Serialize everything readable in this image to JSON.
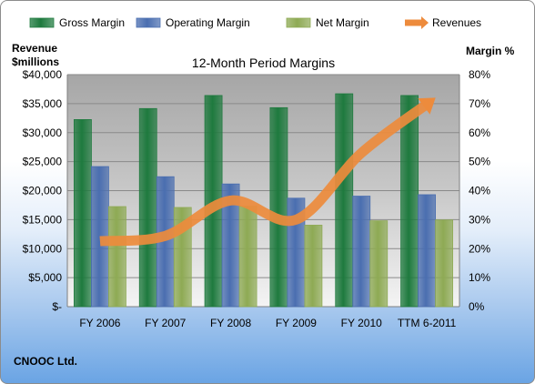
{
  "chart_data": {
    "type": "bar",
    "title": "12-Month Period Margins",
    "categories": [
      "FY 2006",
      "FY 2007",
      "FY 2008",
      "FY 2009",
      "FY 2010",
      "TTM 6-2011"
    ],
    "series": [
      {
        "name": "Gross Margin",
        "axis": "right",
        "color": "#1e7a3e",
        "values": [
          64.5,
          68.3,
          72.8,
          68.6,
          73.4,
          72.8
        ]
      },
      {
        "name": "Operating Margin",
        "axis": "right",
        "color": "#4a6eb0",
        "values": [
          48.3,
          44.8,
          42.3,
          37.4,
          38.1,
          38.6
        ]
      },
      {
        "name": "Net Margin",
        "axis": "right",
        "color": "#8eaa54",
        "values": [
          34.5,
          34.2,
          34.6,
          28.1,
          29.6,
          29.9
        ]
      },
      {
        "name": "Revenues",
        "type": "line",
        "axis": "left",
        "color": "#ed8b3c",
        "values": [
          11300,
          12200,
          18300,
          15000,
          26500,
          34900
        ]
      }
    ],
    "ylabel_left": [
      "Revenue",
      "$millions"
    ],
    "ylabel_right": "Margin %",
    "ylim_left": [
      0,
      40000
    ],
    "ylim_right": [
      0,
      80
    ],
    "yticks_left": [
      "$-",
      "$5,000",
      "$10,000",
      "$15,000",
      "$20,000",
      "$25,000",
      "$30,000",
      "$35,000",
      "$40,000"
    ],
    "yticks_right": [
      "0%",
      "10%",
      "20%",
      "30%",
      "40%",
      "50%",
      "60%",
      "70%",
      "80%"
    ],
    "grid": true,
    "legend_position": "top"
  },
  "footer": {
    "company": "CNOOC Ltd."
  }
}
